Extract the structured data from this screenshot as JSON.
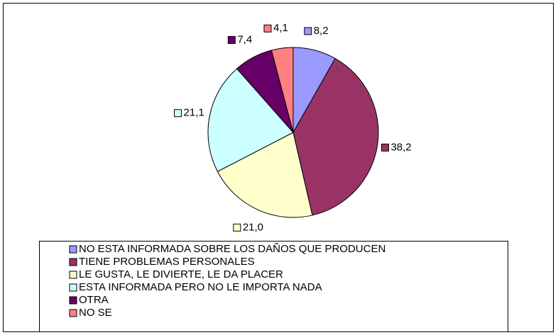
{
  "chart_data": {
    "type": "pie",
    "categories": [
      "NO ESTA INFORMADA SOBRE LOS DAÑOS QUE PRODUCEN",
      "TIENE PROBLEMAS PERSONALES",
      "LE GUSTA, LE DIVIERTE, LE DA PLACER",
      "ESTA INFORMADA PERO NO LE IMPORTA NADA",
      "OTRA",
      "NO SE"
    ],
    "values": [
      8.2,
      38.2,
      21.0,
      21.1,
      7.4,
      4.1
    ],
    "value_labels": [
      "8,2",
      "38,2",
      "21,0",
      "21,1",
      "7,4",
      "4,1"
    ],
    "colors": [
      "#9999ff",
      "#993366",
      "#ffffcc",
      "#ccffff",
      "#660066",
      "#ff8080"
    ],
    "legend": "bottom"
  }
}
